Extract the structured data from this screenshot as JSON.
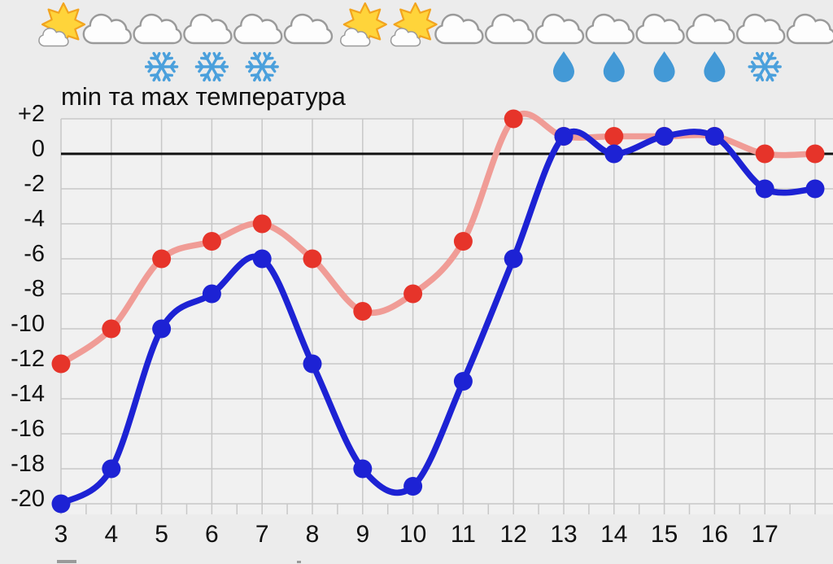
{
  "title": "min та max температура",
  "chart_data": {
    "type": "line",
    "x": [
      3,
      4,
      5,
      6,
      7,
      8,
      9,
      10,
      11,
      12,
      13,
      14,
      15,
      16,
      17,
      18
    ],
    "x_tick_labels": [
      "3",
      "4",
      "5",
      "6",
      "7",
      "8",
      "9",
      "10",
      "11",
      "12",
      "13",
      "14",
      "15",
      "16",
      "17"
    ],
    "yticks": [
      2,
      0,
      -2,
      -4,
      -6,
      -8,
      -10,
      -12,
      -14,
      -16,
      -18,
      -20
    ],
    "ytick_labels": [
      "+2",
      "0",
      "-2",
      "-4",
      "-6",
      "-8",
      "-10",
      "-12",
      "-14",
      "-16",
      "-18",
      "-20"
    ],
    "ylim": [
      -20.6,
      2
    ],
    "grid": true,
    "legend_position": "none",
    "zero_line": true,
    "title": "min та max температура",
    "series": [
      {
        "name": "max",
        "values": [
          -12,
          -10,
          -6,
          -5,
          -4,
          -6,
          -9,
          -8,
          -5,
          2,
          1,
          1,
          1,
          1,
          0,
          0
        ]
      },
      {
        "name": "min",
        "values": [
          -20,
          -18,
          -10,
          -8,
          -6,
          -12,
          -18,
          -19,
          -13,
          -6,
          1,
          0,
          1,
          1,
          -2,
          -2
        ]
      }
    ]
  },
  "weather_icons": [
    {
      "day": 3,
      "sky": "partly-sunny",
      "precip": null
    },
    {
      "day": 4,
      "sky": "cloudy",
      "precip": null
    },
    {
      "day": 5,
      "sky": "cloudy",
      "precip": "snow"
    },
    {
      "day": 6,
      "sky": "cloudy",
      "precip": "snow"
    },
    {
      "day": 7,
      "sky": "cloudy",
      "precip": "snow"
    },
    {
      "day": 8,
      "sky": "cloudy",
      "precip": null
    },
    {
      "day": 9,
      "sky": "partly-sunny",
      "precip": null
    },
    {
      "day": 10,
      "sky": "partly-sunny",
      "precip": null
    },
    {
      "day": 11,
      "sky": "cloudy",
      "precip": null
    },
    {
      "day": 12,
      "sky": "cloudy",
      "precip": null
    },
    {
      "day": 13,
      "sky": "cloudy",
      "precip": "rain"
    },
    {
      "day": 14,
      "sky": "cloudy",
      "precip": "rain"
    },
    {
      "day": 15,
      "sky": "cloudy",
      "precip": "rain"
    },
    {
      "day": 16,
      "sky": "cloudy",
      "precip": "rain"
    },
    {
      "day": 17,
      "sky": "cloudy",
      "precip": "snow"
    },
    {
      "day": 18,
      "sky": "cloudy",
      "precip": null
    }
  ],
  "colors": {
    "background": "#ececec",
    "plot_background": "#f1f1f1",
    "grid": "#c8c8c8",
    "zero_line": "#111111",
    "max_point": "#e6342a",
    "max_line": "#f09c96",
    "min_point": "#1d22d4",
    "min_line": "#1d22d4",
    "cloud_outline": "#9a9a9a",
    "cloud_fill": "#fdfdfd",
    "sun_fill": "#ffd43a",
    "sun_outline": "#f2a41f",
    "snow": "#4ba0dc",
    "rain": "#4399d6",
    "text": "#111111"
  }
}
